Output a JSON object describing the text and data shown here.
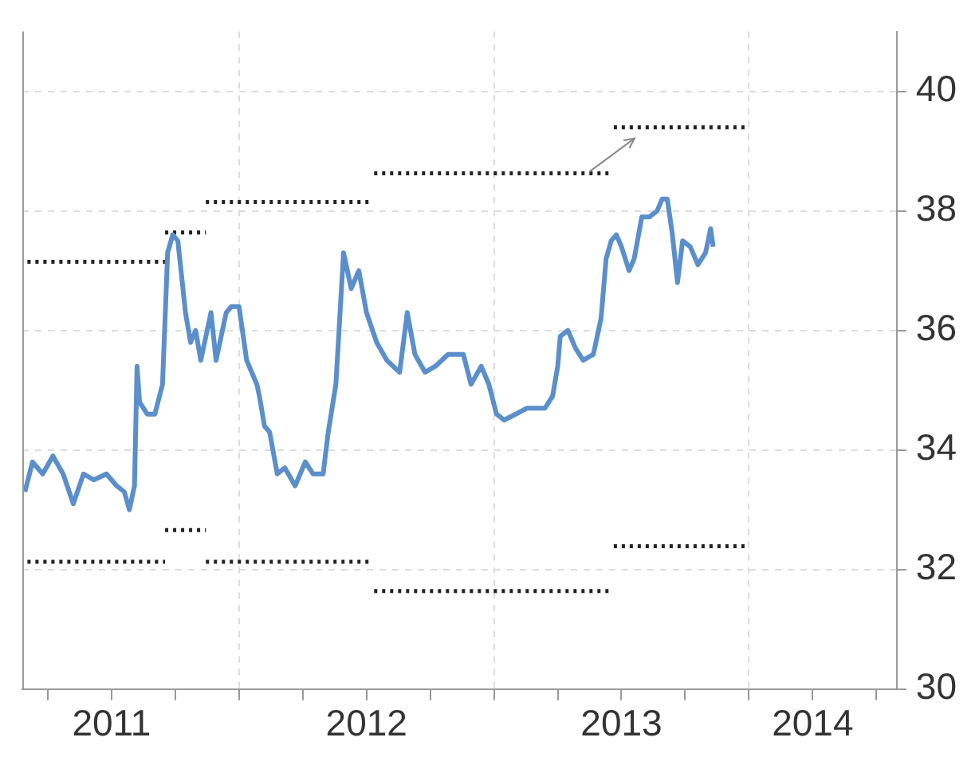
{
  "chart_data": {
    "type": "line",
    "xlim": [
      2011.15,
      2014.58
    ],
    "ylim": [
      30,
      41
    ],
    "xticks": [
      {
        "value": 2011.25,
        "label": null
      },
      {
        "value": 2011.5,
        "label": "2011"
      },
      {
        "value": 2011.75,
        "label": null
      },
      {
        "value": 2012,
        "label": null
      },
      {
        "value": 2012.25,
        "label": null
      },
      {
        "value": 2012.5,
        "label": "2012"
      },
      {
        "value": 2012.75,
        "label": null
      },
      {
        "value": 2013,
        "label": null
      },
      {
        "value": 2013.25,
        "label": null
      },
      {
        "value": 2013.5,
        "label": "2013"
      },
      {
        "value": 2013.75,
        "label": null
      },
      {
        "value": 2014,
        "label": null
      },
      {
        "value": 2014.25,
        "label": "2014"
      },
      {
        "value": 2014.5,
        "label": null
      }
    ],
    "yticks": [
      30,
      32,
      34,
      36,
      38,
      40
    ],
    "grid": true,
    "legend": false,
    "marker": "none",
    "series": [
      {
        "color": "#5b8fcc",
        "line_style": "solid",
        "x": [
          2011.16,
          2011.19,
          2011.23,
          2011.27,
          2011.31,
          2011.35,
          2011.39,
          2011.43,
          2011.48,
          2011.52,
          2011.55,
          2011.57,
          2011.59,
          2011.6,
          2011.61,
          2011.64,
          2011.67,
          2011.7,
          2011.72,
          2011.74,
          2011.76,
          2011.79,
          2011.81,
          2011.83,
          2011.85,
          2011.89,
          2011.91,
          2011.95,
          2011.97,
          2012.0,
          2012.03,
          2012.07,
          2012.08,
          2012.1,
          2012.12,
          2012.15,
          2012.18,
          2012.22,
          2012.26,
          2012.29,
          2012.33,
          2012.35,
          2012.38,
          2012.41,
          2012.44,
          2012.47,
          2012.5,
          2012.54,
          2012.58,
          2012.63,
          2012.66,
          2012.69,
          2012.73,
          2012.77,
          2012.82,
          2012.88,
          2012.91,
          2012.95,
          2012.98,
          2013.01,
          2013.04,
          2013.13,
          2013.2,
          2013.23,
          2013.25,
          2013.26,
          2013.29,
          2013.32,
          2013.35,
          2013.39,
          2013.42,
          2013.44,
          2013.46,
          2013.48,
          2013.5,
          2013.53,
          2013.55,
          2013.58,
          2013.61,
          2013.64,
          2013.66,
          2013.68,
          2013.7,
          2013.72,
          2013.74,
          2013.77,
          2013.8,
          2013.83,
          2013.85,
          2013.86
        ],
        "values": [
          33.3,
          33.8,
          33.6,
          33.9,
          33.6,
          33.1,
          33.6,
          33.5,
          33.6,
          33.4,
          33.3,
          33.0,
          33.4,
          35.4,
          34.8,
          34.6,
          34.6,
          35.1,
          37.3,
          37.6,
          37.5,
          36.3,
          35.8,
          36.0,
          35.5,
          36.3,
          35.5,
          36.3,
          36.4,
          36.4,
          35.5,
          35.1,
          34.9,
          34.4,
          34.3,
          33.6,
          33.7,
          33.4,
          33.8,
          33.6,
          33.6,
          34.3,
          35.1,
          37.3,
          36.7,
          37.0,
          36.3,
          35.8,
          35.5,
          35.3,
          36.3,
          35.6,
          35.3,
          35.4,
          35.6,
          35.6,
          35.1,
          35.4,
          35.1,
          34.6,
          34.5,
          34.7,
          34.7,
          34.9,
          35.4,
          35.9,
          36.0,
          35.7,
          35.5,
          35.6,
          36.2,
          37.2,
          37.5,
          37.6,
          37.4,
          37.0,
          37.2,
          37.9,
          37.9,
          38.0,
          38.2,
          38.2,
          37.6,
          36.8,
          37.5,
          37.4,
          37.1,
          37.3,
          37.7,
          37.4
        ]
      },
      {
        "color": "#222222",
        "line_style": "dotted",
        "x": [
          2011.17,
          2011.71
        ],
        "values": [
          37.15,
          37.15
        ]
      },
      {
        "color": "#222222",
        "line_style": "dotted",
        "x": [
          2011.71,
          2011.87
        ],
        "values": [
          37.64,
          37.64
        ]
      },
      {
        "color": "#222222",
        "line_style": "dotted",
        "x": [
          2011.87,
          2012.51
        ],
        "values": [
          38.15,
          38.15
        ]
      },
      {
        "color": "#222222",
        "line_style": "dotted",
        "x": [
          2012.53,
          2013.45
        ],
        "values": [
          38.63,
          38.63
        ]
      },
      {
        "color": "#222222",
        "line_style": "dotted",
        "x": [
          2013.47,
          2014.0
        ],
        "values": [
          39.4,
          39.4
        ]
      },
      {
        "color": "#222222",
        "line_style": "dotted",
        "x": [
          2011.17,
          2011.71
        ],
        "values": [
          32.13,
          32.13
        ]
      },
      {
        "color": "#222222",
        "line_style": "dotted",
        "x": [
          2011.71,
          2011.87
        ],
        "values": [
          32.66,
          32.66
        ]
      },
      {
        "color": "#222222",
        "line_style": "dotted",
        "x": [
          2011.87,
          2012.51
        ],
        "values": [
          32.13,
          32.13
        ]
      },
      {
        "color": "#222222",
        "line_style": "dotted",
        "x": [
          2012.53,
          2013.45
        ],
        "values": [
          31.64,
          31.64
        ]
      },
      {
        "color": "#222222",
        "line_style": "dotted",
        "x": [
          2013.47,
          2014.0
        ],
        "values": [
          32.39,
          32.39
        ]
      }
    ]
  }
}
